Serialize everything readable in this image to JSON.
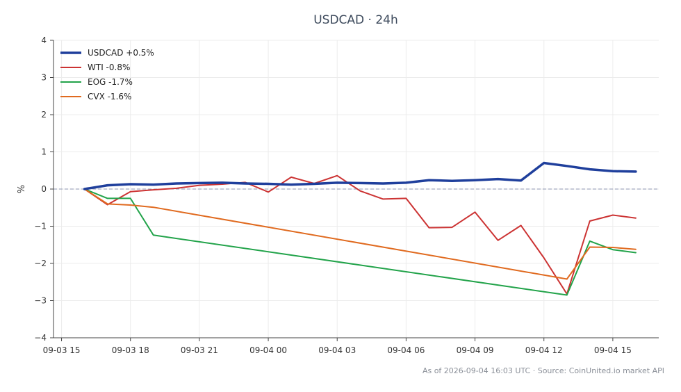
{
  "header": {
    "title": "USDCAD · 24h"
  },
  "footer": {
    "note": "As of 2026-09-04 16:03 UTC · Source: CoinUnited.io market API"
  },
  "chart_data": {
    "type": "line",
    "title": "USDCAD · 24h",
    "xlabel": "",
    "ylabel": "%",
    "ylim": [
      -4,
      4
    ],
    "xlim": [
      -0.35,
      26.0
    ],
    "yticks": [
      -4,
      -3,
      -2,
      -1,
      0,
      1,
      2,
      3,
      4
    ],
    "xticks": [
      {
        "x": 0,
        "label": "09-03 15"
      },
      {
        "x": 3,
        "label": "09-03 18"
      },
      {
        "x": 6,
        "label": "09-03 21"
      },
      {
        "x": 9,
        "label": "09-04 00"
      },
      {
        "x": 12,
        "label": "09-04 03"
      },
      {
        "x": 15,
        "label": "09-04 06"
      },
      {
        "x": 18,
        "label": "09-04 09"
      },
      {
        "x": 21,
        "label": "09-04 12"
      },
      {
        "x": 24,
        "label": "09-04 15"
      }
    ],
    "grid": true,
    "zero_line": true,
    "legend_position": "top-left",
    "series": [
      {
        "name": "USDCAD +0.5%",
        "color": "#1f3f9c",
        "width": 3.5,
        "points": [
          [
            1,
            0
          ],
          [
            2,
            0.1
          ],
          [
            3,
            0.13
          ],
          [
            4,
            0.12
          ],
          [
            5,
            0.15
          ],
          [
            6,
            0.16
          ],
          [
            7,
            0.17
          ],
          [
            8,
            0.15
          ],
          [
            9,
            0.14
          ],
          [
            10,
            0.12
          ],
          [
            11,
            0.14
          ],
          [
            12,
            0.17
          ],
          [
            13,
            0.16
          ],
          [
            14,
            0.15
          ],
          [
            15,
            0.17
          ],
          [
            16,
            0.24
          ],
          [
            17,
            0.22
          ],
          [
            18,
            0.24
          ],
          [
            19,
            0.27
          ],
          [
            20,
            0.23
          ],
          [
            21,
            0.7
          ],
          [
            22,
            0.62
          ],
          [
            23,
            0.53
          ],
          [
            24,
            0.48
          ],
          [
            25,
            0.47
          ]
        ]
      },
      {
        "name": "WTI -0.8%",
        "color": "#cc3333",
        "width": 2,
        "points": [
          [
            1,
            0
          ],
          [
            2,
            -0.42
          ],
          [
            3,
            -0.07
          ],
          [
            4,
            -0.02
          ],
          [
            5,
            0.02
          ],
          [
            6,
            0.1
          ],
          [
            7,
            0.13
          ],
          [
            8,
            0.18
          ],
          [
            9,
            -0.08
          ],
          [
            10,
            0.32
          ],
          [
            11,
            0.15
          ],
          [
            12,
            0.36
          ],
          [
            13,
            -0.05
          ],
          [
            14,
            -0.27
          ],
          [
            15,
            -0.25
          ],
          [
            16,
            -1.04
          ],
          [
            17,
            -1.03
          ],
          [
            18,
            -0.62
          ],
          [
            19,
            -1.38
          ],
          [
            20,
            -0.98
          ],
          [
            21,
            -1.85
          ],
          [
            22,
            -2.82
          ],
          [
            23,
            -0.86
          ],
          [
            24,
            -0.7
          ],
          [
            25,
            -0.78
          ]
        ]
      },
      {
        "name": "EOG -1.7%",
        "color": "#22a34a",
        "width": 2,
        "points": [
          [
            1,
            0
          ],
          [
            2,
            -0.25
          ],
          [
            3,
            -0.25
          ],
          [
            4,
            -1.24
          ],
          [
            22,
            -2.85
          ],
          [
            23,
            -1.4
          ],
          [
            24,
            -1.63
          ],
          [
            25,
            -1.71
          ]
        ]
      },
      {
        "name": "CVX -1.6%",
        "color": "#e06a1f",
        "width": 2,
        "points": [
          [
            1,
            0
          ],
          [
            2,
            -0.4
          ],
          [
            3,
            -0.43
          ],
          [
            4,
            -0.49
          ],
          [
            22,
            -2.42
          ],
          [
            23,
            -1.56
          ],
          [
            24,
            -1.57
          ],
          [
            25,
            -1.62
          ]
        ]
      }
    ]
  }
}
